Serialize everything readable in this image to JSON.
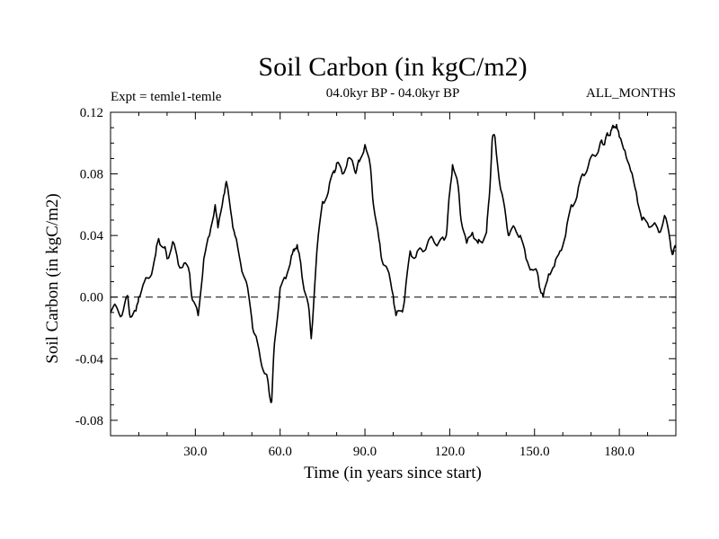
{
  "chart_data": {
    "type": "line",
    "title": "Soil Carbon (in kgC/m2)",
    "subtitle_left": "Expt = temle1-temle",
    "subtitle_center": "04.0kyr BP - 04.0kyr BP",
    "subtitle_right": "ALL_MONTHS",
    "xlabel": "Time (in years since start)",
    "ylabel": "Soil Carbon (in kgC/m2)",
    "xlim": [
      0,
      200
    ],
    "ylim": [
      -0.09,
      0.12
    ],
    "xticks": [
      30,
      60,
      90,
      120,
      150,
      180
    ],
    "xtick_labels": [
      "30.0",
      "60.0",
      "90.0",
      "120.0",
      "150.0",
      "180.0"
    ],
    "yticks": [
      -0.08,
      -0.04,
      0.0,
      0.04,
      0.08,
      0.12
    ],
    "ytick_labels": [
      "-0.08",
      "-0.04",
      "0.00",
      "0.04",
      "0.08",
      "0.12"
    ],
    "reference_line": {
      "y": 0.0,
      "style": "dashed"
    },
    "series": [
      {
        "name": "Soil Carbon",
        "x": [
          0,
          2,
          4,
          6,
          7,
          9,
          10,
          12,
          14,
          16,
          17,
          19,
          20,
          22,
          24,
          26,
          28,
          29,
          31,
          33,
          35,
          37,
          38,
          40,
          41,
          43,
          44,
          46,
          48,
          50,
          51,
          53,
          55,
          56,
          57,
          58,
          60,
          62,
          64,
          65,
          66,
          67,
          68,
          70,
          71,
          73,
          75,
          77,
          79,
          80,
          82,
          84,
          86,
          87,
          88,
          90,
          92,
          93,
          95,
          96,
          98,
          100,
          101,
          103,
          104,
          106,
          108,
          110,
          112,
          114,
          116,
          118,
          119,
          120,
          121,
          123,
          124,
          126,
          128,
          130,
          131,
          133,
          134,
          135,
          136,
          138,
          140,
          141,
          143,
          145,
          147,
          149,
          151,
          152,
          153,
          155,
          157,
          159,
          161,
          163,
          165,
          167,
          169,
          171,
          173,
          174,
          175,
          176,
          177,
          178,
          179,
          180,
          182,
          184,
          186,
          188,
          190,
          192,
          194,
          196,
          198,
          199,
          200
        ],
        "values": [
          -0.01,
          -0.006,
          -0.012,
          0.001,
          -0.013,
          -0.009,
          0.0,
          0.01,
          0.013,
          0.028,
          0.038,
          0.032,
          0.025,
          0.036,
          0.021,
          0.022,
          0.015,
          -0.002,
          -0.012,
          0.025,
          0.04,
          0.06,
          0.045,
          0.066,
          0.075,
          0.05,
          0.04,
          0.022,
          0.01,
          -0.015,
          -0.024,
          -0.04,
          -0.05,
          -0.06,
          -0.068,
          -0.03,
          0.006,
          0.012,
          0.027,
          0.03,
          0.034,
          0.025,
          0.01,
          -0.005,
          -0.027,
          0.03,
          0.062,
          0.068,
          0.082,
          0.087,
          0.08,
          0.09,
          0.085,
          0.082,
          0.088,
          0.099,
          0.084,
          0.06,
          0.037,
          0.024,
          0.018,
          0.001,
          -0.012,
          -0.009,
          -0.002,
          0.03,
          0.026,
          0.031,
          0.034,
          0.038,
          0.035,
          0.037,
          0.044,
          0.068,
          0.086,
          0.072,
          0.05,
          0.035,
          0.042,
          0.035,
          0.036,
          0.042,
          0.065,
          0.102,
          0.104,
          0.07,
          0.05,
          0.04,
          0.045,
          0.04,
          0.025,
          0.018,
          0.016,
          0.005,
          0.0,
          0.015,
          0.02,
          0.03,
          0.04,
          0.06,
          0.065,
          0.08,
          0.085,
          0.092,
          0.098,
          0.1,
          0.102,
          0.105,
          0.108,
          0.11,
          0.112,
          0.104,
          0.095,
          0.082,
          0.068,
          0.05,
          0.048,
          0.047,
          0.042,
          0.053,
          0.036,
          0.028,
          0.032
        ]
      }
    ]
  }
}
